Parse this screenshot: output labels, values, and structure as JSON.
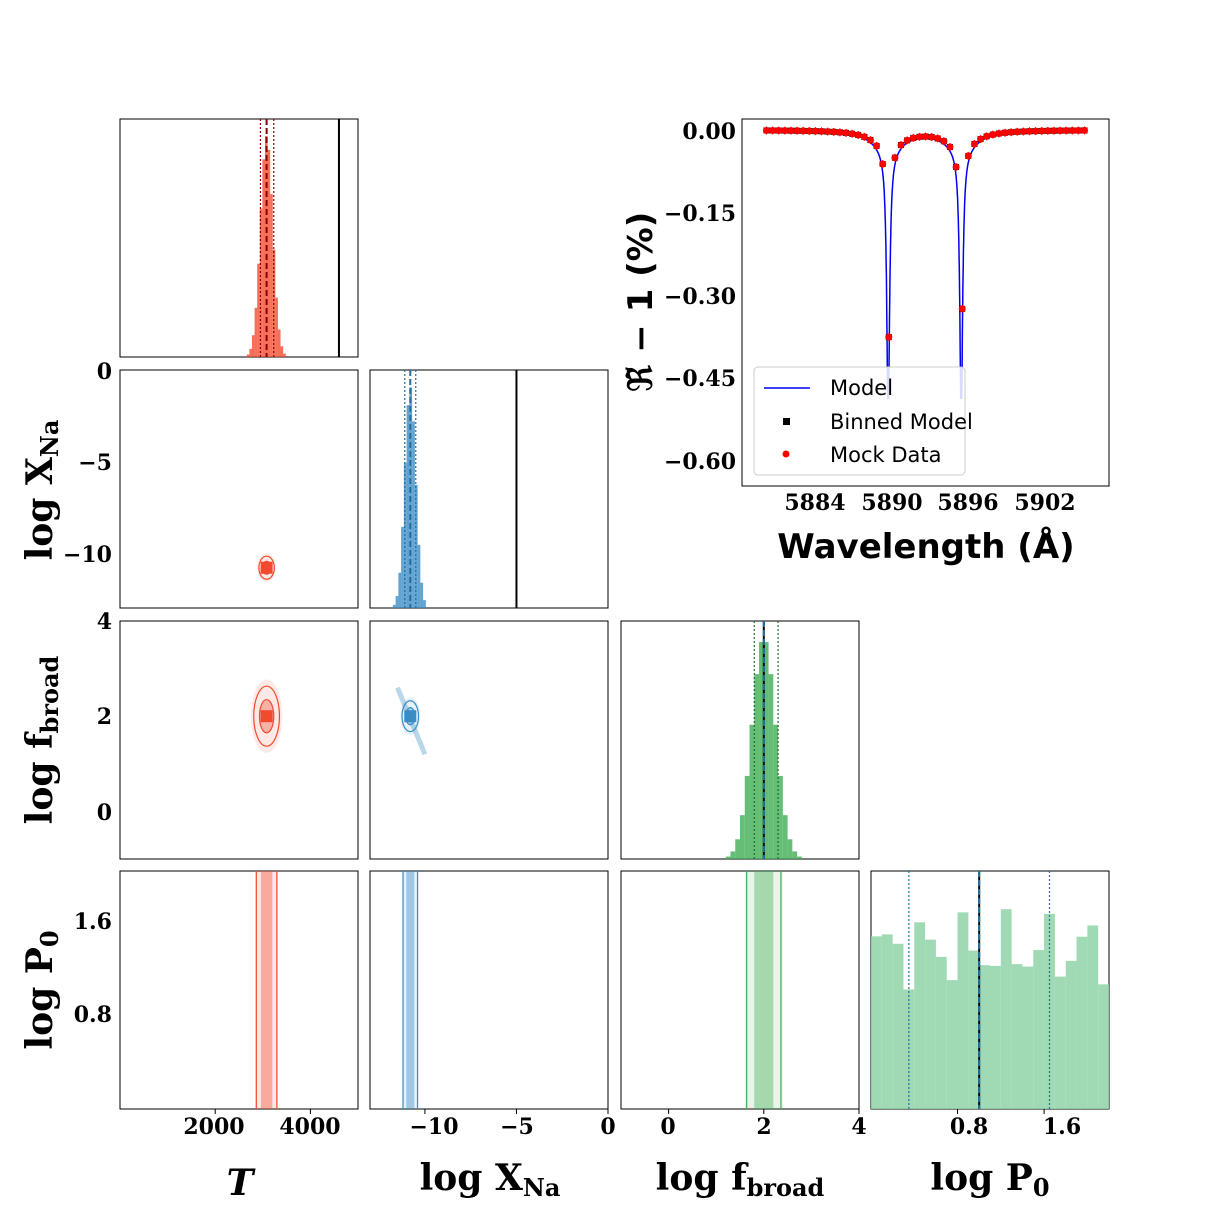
{
  "colors": {
    "T": "#f24a2e",
    "logXNa": "#3a8cc4",
    "logfbroad": "#3fae52",
    "logP0": "#8fd4a8",
    "model": "#0000ee",
    "binned": "#000000",
    "mock": "#ff0000",
    "truth": "#000000",
    "dashed_T": "#8b0000",
    "dashed_P0": "#1f6fa0"
  },
  "parameters": [
    {
      "key": "T",
      "label": "T",
      "sub": ""
    },
    {
      "key": "logXNa",
      "label": "log X",
      "sub": "Na"
    },
    {
      "key": "logfbroad",
      "label": "log f",
      "sub": "broad"
    },
    {
      "key": "logP0",
      "label": "log P",
      "sub": "0"
    }
  ],
  "axis_ticks": {
    "T": [
      "2000",
      "4000"
    ],
    "logXNa": [
      "−10",
      "−5",
      "0"
    ],
    "logfbroad": [
      "0",
      "2",
      "4"
    ],
    "logP0": [
      "0.8",
      "1.6"
    ]
  },
  "row_ticks": {
    "logXNa": [
      "0",
      "−5",
      "−10"
    ],
    "logfbroad": [
      "4",
      "2",
      "0"
    ],
    "logP0": [
      "1.6",
      "0.8"
    ]
  },
  "spectrum": {
    "ylabel": "ℜ̃ − 1 (%)",
    "xlabel": "Wavelength (Å)",
    "xticks": [
      "5884",
      "5890",
      "5896",
      "5902"
    ],
    "yticks": [
      "0.00",
      "−0.15",
      "−0.30",
      "−0.45",
      "−0.60"
    ],
    "legend": [
      "Model",
      "Binned Model",
      "Mock Data"
    ]
  },
  "chart_data": {
    "type": "scatter",
    "subtype": "corner plot with spectrum inset",
    "corner": {
      "parameters": [
        "T",
        "log X_Na",
        "log f_broad",
        "log P_0"
      ],
      "ranges": {
        "T": [
          0,
          5000
        ],
        "logXNa": [
          -13,
          0
        ],
        "logfbroad": [
          -1,
          4
        ],
        "logP0": [
          0,
          2.2
        ]
      },
      "truth_values": {
        "T": 4600,
        "logXNa": -5,
        "logfbroad": 2,
        "logP0": 1.0
      },
      "posterior_medians": {
        "T": 3080,
        "logXNa": -10.8,
        "logfbroad": 2.0,
        "logP0": 1.0
      },
      "credible_68": {
        "T": [
          2950,
          3230
        ],
        "logXNa": [
          -11.1,
          -10.5
        ],
        "logfbroad": [
          1.8,
          2.3
        ],
        "logP0": [
          0.35,
          1.65
        ]
      }
    },
    "spectrum": {
      "x_range": [
        5878,
        5908
      ],
      "y_range": [
        -0.65,
        0.02
      ],
      "lines_center": [
        5889.95,
        5895.92
      ],
      "line_depth": -0.49,
      "binned_points_x": [
        5880.0,
        5880.5,
        5881.0,
        5881.5,
        5882.0,
        5882.5,
        5883.0,
        5883.5,
        5884.0,
        5884.5,
        5885.0,
        5885.5,
        5886.0,
        5886.5,
        5887.0,
        5887.5,
        5888.0,
        5888.5,
        5889.0,
        5889.5,
        5890.0,
        5890.5,
        5891.0,
        5891.5,
        5892.0,
        5892.5,
        5893.0,
        5893.5,
        5894.0,
        5894.5,
        5895.0,
        5895.5,
        5896.0,
        5896.5,
        5897.0,
        5897.5,
        5898.0,
        5898.5,
        5899.0,
        5899.5,
        5900.0,
        5900.5,
        5901.0,
        5901.5,
        5902.0,
        5902.5,
        5903.0,
        5903.5,
        5904.0,
        5904.5,
        5905.0,
        5905.5,
        5906.0
      ]
    }
  }
}
